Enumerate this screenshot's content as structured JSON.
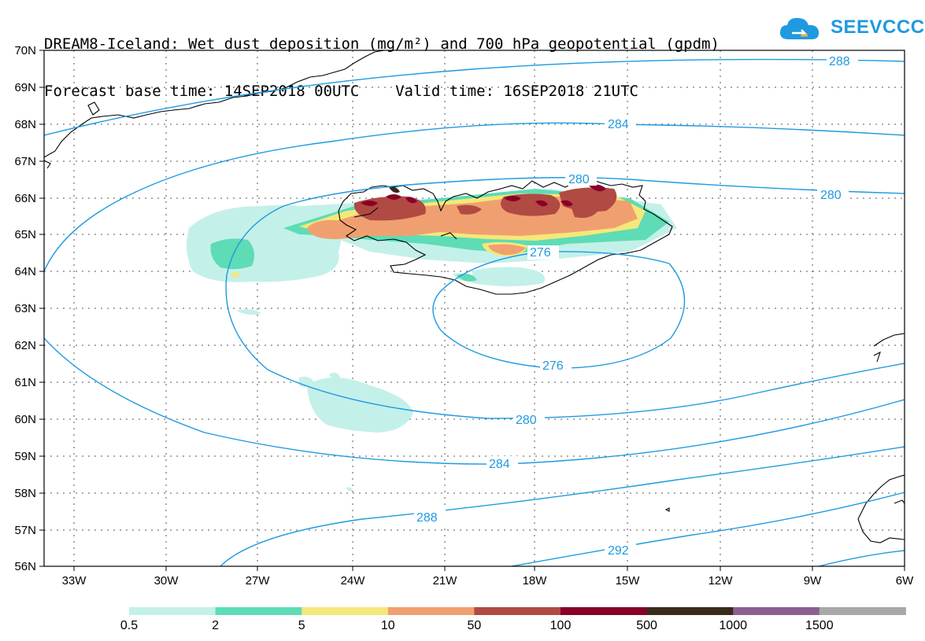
{
  "title": {
    "line1": "DREAM8-Iceland: Wet dust deposition (mg/m²) and 700 hPa geopotential (gpdm)",
    "line2": "Forecast base time: 14SEP2018 00UTC    Valid time: 16SEP2018 21UTC"
  },
  "logo": {
    "text": "SEEVCCC",
    "icon": "cloud-logo-icon"
  },
  "map": {
    "lon_labels": [
      "33W",
      "30W",
      "27W",
      "24W",
      "21W",
      "18W",
      "15W",
      "12W",
      "9W",
      "6W"
    ],
    "lat_labels": [
      "70N",
      "69N",
      "68N",
      "67N",
      "66N",
      "65N",
      "64N",
      "63N",
      "62N",
      "61N",
      "60N",
      "59N",
      "58N",
      "57N",
      "56N"
    ],
    "lon_range": [
      "34.5W",
      "6W"
    ],
    "lat_range": [
      "56N",
      "70N"
    ],
    "contour_labels": [
      "288",
      "284",
      "280",
      "280",
      "276",
      "276",
      "280",
      "284",
      "288",
      "292"
    ],
    "contour_color": "#1f9ae0"
  },
  "legend": {
    "labels": [
      "0.5",
      "2",
      "5",
      "10",
      "50",
      "100",
      "500",
      "1000",
      "1500"
    ],
    "colors": [
      "#c4f0ea",
      "#5ddcb6",
      "#f5e87a",
      "#f0a070",
      "#b04a42",
      "#880028",
      "#3a2a1a",
      "#8a6090",
      "#a8a8a8"
    ]
  }
}
